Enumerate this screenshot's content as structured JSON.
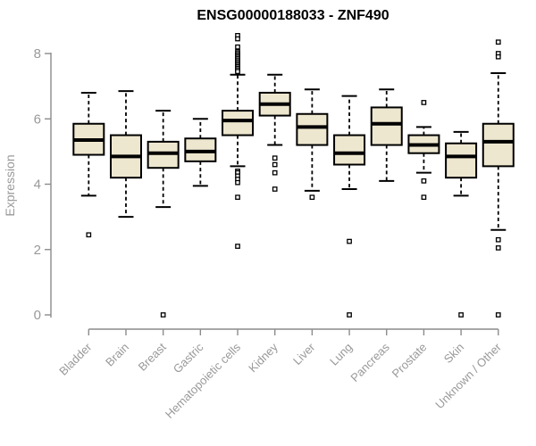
{
  "figure": {
    "title": "ENSG00000188033 - ZNF490",
    "y_axis_label": "Expression"
  },
  "chart_data": {
    "type": "boxplot",
    "title": "ENSG00000188033 - ZNF490",
    "xlabel": "",
    "ylabel": "Expression",
    "ylim": [
      0,
      8.6
    ],
    "yticks": [
      0,
      2,
      4,
      6,
      8
    ],
    "grid": false,
    "legend": null,
    "colors": {
      "box_fill": "#EEE7CF",
      "box_stroke": "#000000",
      "median": "#000000",
      "whisker": "#000000",
      "outlier_fill": "#ffffff",
      "axis": "#8c8c8c",
      "tick_label": "#999999",
      "title": "#000000"
    },
    "categories": [
      "Bladder",
      "Brain",
      "Breast",
      "Gastric",
      "Hematopoietic cells",
      "Kidney",
      "Liver",
      "Lung",
      "Pancreas",
      "Prostate",
      "Skin",
      "Unknown / Other"
    ],
    "boxes": [
      {
        "name": "Bladder",
        "low": 3.65,
        "q1": 4.9,
        "median": 5.35,
        "q3": 5.85,
        "high": 6.8,
        "outliers": [
          2.45
        ]
      },
      {
        "name": "Brain",
        "low": 3.0,
        "q1": 4.2,
        "median": 4.85,
        "q3": 5.5,
        "high": 6.85,
        "outliers": []
      },
      {
        "name": "Breast",
        "low": 3.3,
        "q1": 4.5,
        "median": 4.95,
        "q3": 5.3,
        "high": 6.25,
        "outliers": [
          0
        ]
      },
      {
        "name": "Gastric",
        "low": 3.95,
        "q1": 4.7,
        "median": 5.0,
        "q3": 5.4,
        "high": 6.0,
        "outliers": []
      },
      {
        "name": "Hematopoietic cells",
        "low": 4.55,
        "q1": 5.5,
        "median": 5.95,
        "q3": 6.25,
        "high": 7.35,
        "outliers": [
          8.55,
          8.45,
          8.2,
          8.05,
          8.0,
          7.95,
          7.9,
          7.85,
          7.8,
          7.75,
          7.7,
          7.65,
          7.6,
          7.55,
          7.5,
          7.45,
          4.4,
          4.35,
          4.25,
          4.15,
          4.05,
          3.6,
          2.1
        ]
      },
      {
        "name": "Kidney",
        "low": 5.2,
        "q1": 6.1,
        "median": 6.45,
        "q3": 6.8,
        "high": 7.35,
        "outliers": [
          4.8,
          4.6,
          4.35,
          3.85
        ]
      },
      {
        "name": "Liver",
        "low": 3.8,
        "q1": 5.2,
        "median": 5.75,
        "q3": 6.15,
        "high": 6.9,
        "outliers": [
          3.6
        ]
      },
      {
        "name": "Lung",
        "low": 3.85,
        "q1": 4.6,
        "median": 4.95,
        "q3": 5.5,
        "high": 6.7,
        "outliers": [
          2.25,
          0
        ]
      },
      {
        "name": "Pancreas",
        "low": 4.1,
        "q1": 5.2,
        "median": 5.85,
        "q3": 6.35,
        "high": 6.9,
        "outliers": []
      },
      {
        "name": "Prostate",
        "low": 4.35,
        "q1": 4.95,
        "median": 5.2,
        "q3": 5.5,
        "high": 5.75,
        "outliers": [
          6.5,
          4.1,
          3.6
        ]
      },
      {
        "name": "Skin",
        "low": 3.65,
        "q1": 4.2,
        "median": 4.85,
        "q3": 5.25,
        "high": 5.6,
        "outliers": [
          0
        ]
      },
      {
        "name": "Unknown / Other",
        "low": 2.6,
        "q1": 4.55,
        "median": 5.3,
        "q3": 5.85,
        "high": 7.4,
        "outliers": [
          8.35,
          8.0,
          7.9,
          2.3,
          2.05,
          0
        ]
      }
    ]
  }
}
